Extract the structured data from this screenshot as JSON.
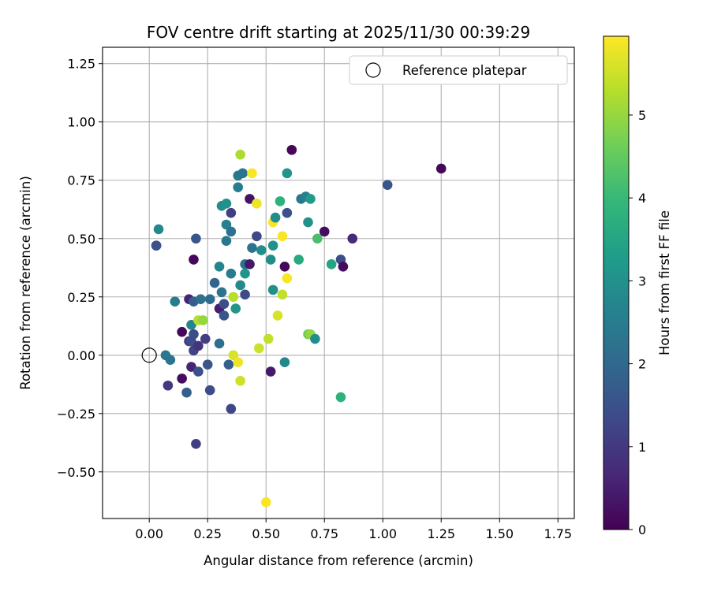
{
  "chart_data": {
    "type": "scatter",
    "title": "FOV centre drift starting at 2025/11/30 00:39:29",
    "xlabel": "Angular distance from reference (arcmin)",
    "ylabel": "Rotation from reference (arcmin)",
    "xlim": [
      -0.2,
      1.82
    ],
    "ylim": [
      -0.7,
      1.32
    ],
    "xticks": [
      0.0,
      0.25,
      0.5,
      0.75,
      1.0,
      1.25,
      1.5,
      1.75
    ],
    "xtick_labels": [
      "0.00",
      "0.25",
      "0.50",
      "0.75",
      "1.00",
      "1.25",
      "1.50",
      "1.75"
    ],
    "yticks": [
      -0.5,
      -0.25,
      0.0,
      0.25,
      0.5,
      0.75,
      1.0,
      1.25
    ],
    "ytick_labels": [
      "−0.50",
      "−0.25",
      "0.00",
      "0.25",
      "0.50",
      "0.75",
      "1.00",
      "1.25"
    ],
    "grid": true,
    "legend": {
      "position": "top-right",
      "entries": [
        "Reference platepar"
      ]
    },
    "reference_point": {
      "x": 0.0,
      "y": 0.0,
      "label": "Reference platepar"
    },
    "colorbar": {
      "label": "Hours from first FF file",
      "range": [
        0,
        5.95
      ],
      "ticks": [
        0,
        1,
        2,
        3,
        4,
        5
      ],
      "tick_labels": [
        "0",
        "1",
        "2",
        "3",
        "4",
        "5"
      ],
      "colormap": [
        "#440154",
        "#482878",
        "#3e4989",
        "#31688e",
        "#26828e",
        "#1f9e89",
        "#35b779",
        "#6ece58",
        "#b5de2b",
        "#fde725"
      ]
    },
    "points": [
      {
        "x": 0.03,
        "y": 0.47,
        "hours": 1.2
      },
      {
        "x": 0.03,
        "y": 0.47,
        "hours": 1.5
      },
      {
        "x": 0.04,
        "y": 0.54,
        "hours": 2.8
      },
      {
        "x": 0.07,
        "y": 0.0,
        "hours": 2.4
      },
      {
        "x": 0.09,
        "y": -0.02,
        "hours": 2.3
      },
      {
        "x": 0.08,
        "y": -0.13,
        "hours": 1.0
      },
      {
        "x": 0.11,
        "y": 0.23,
        "hours": 2.5
      },
      {
        "x": 0.14,
        "y": 0.1,
        "hours": 0.1
      },
      {
        "x": 0.14,
        "y": -0.1,
        "hours": 0.2
      },
      {
        "x": 0.16,
        "y": -0.16,
        "hours": 1.8
      },
      {
        "x": 0.17,
        "y": 0.06,
        "hours": 1.0
      },
      {
        "x": 0.17,
        "y": 0.24,
        "hours": 0.6
      },
      {
        "x": 0.18,
        "y": -0.05,
        "hours": 0.6
      },
      {
        "x": 0.18,
        "y": 0.06,
        "hours": 1.4
      },
      {
        "x": 0.18,
        "y": 0.13,
        "hours": 2.7
      },
      {
        "x": 0.19,
        "y": 0.02,
        "hours": 1.2
      },
      {
        "x": 0.19,
        "y": 0.09,
        "hours": 1.4
      },
      {
        "x": 0.19,
        "y": 0.23,
        "hours": 1.8
      },
      {
        "x": 0.19,
        "y": 0.41,
        "hours": 0.1
      },
      {
        "x": 0.2,
        "y": 0.5,
        "hours": 1.6
      },
      {
        "x": 0.2,
        "y": -0.38,
        "hours": 1.1
      },
      {
        "x": 0.21,
        "y": -0.07,
        "hours": 1.5
      },
      {
        "x": 0.21,
        "y": 0.04,
        "hours": 0.9
      },
      {
        "x": 0.21,
        "y": 0.15,
        "hours": 5.3
      },
      {
        "x": 0.22,
        "y": 0.24,
        "hours": 2.2
      },
      {
        "x": 0.23,
        "y": 0.15,
        "hours": 5.0
      },
      {
        "x": 0.24,
        "y": 0.07,
        "hours": 1.1
      },
      {
        "x": 0.25,
        "y": -0.04,
        "hours": 1.6
      },
      {
        "x": 0.26,
        "y": -0.15,
        "hours": 1.4
      },
      {
        "x": 0.26,
        "y": 0.24,
        "hours": 2.1
      },
      {
        "x": 0.28,
        "y": 0.31,
        "hours": 1.9
      },
      {
        "x": 0.3,
        "y": 0.05,
        "hours": 2.2
      },
      {
        "x": 0.3,
        "y": 0.2,
        "hours": 0.5
      },
      {
        "x": 0.3,
        "y": 0.38,
        "hours": 2.7
      },
      {
        "x": 0.31,
        "y": 0.64,
        "hours": 2.9
      },
      {
        "x": 0.31,
        "y": 0.27,
        "hours": 2.3
      },
      {
        "x": 0.32,
        "y": 0.22,
        "hours": 1.4
      },
      {
        "x": 0.32,
        "y": 0.17,
        "hours": 1.6
      },
      {
        "x": 0.33,
        "y": 0.65,
        "hours": 3.0
      },
      {
        "x": 0.33,
        "y": 0.56,
        "hours": 2.6
      },
      {
        "x": 0.33,
        "y": 0.49,
        "hours": 2.4
      },
      {
        "x": 0.34,
        "y": -0.04,
        "hours": 1.8
      },
      {
        "x": 0.35,
        "y": -0.23,
        "hours": 1.3
      },
      {
        "x": 0.35,
        "y": 0.53,
        "hours": 2.2
      },
      {
        "x": 0.35,
        "y": 0.35,
        "hours": 2.5
      },
      {
        "x": 0.35,
        "y": 0.61,
        "hours": 1.1
      },
      {
        "x": 0.36,
        "y": 0.25,
        "hours": 5.3
      },
      {
        "x": 0.36,
        "y": 0.0,
        "hours": 5.6
      },
      {
        "x": 0.37,
        "y": 0.2,
        "hours": 3.1
      },
      {
        "x": 0.38,
        "y": 0.72,
        "hours": 2.5
      },
      {
        "x": 0.38,
        "y": 0.77,
        "hours": 2.4
      },
      {
        "x": 0.38,
        "y": -0.03,
        "hours": 5.8
      },
      {
        "x": 0.39,
        "y": 0.86,
        "hours": 5.2
      },
      {
        "x": 0.39,
        "y": -0.11,
        "hours": 5.5
      },
      {
        "x": 0.39,
        "y": 0.3,
        "hours": 2.8
      },
      {
        "x": 0.4,
        "y": 0.78,
        "hours": 2.3
      },
      {
        "x": 0.41,
        "y": 0.26,
        "hours": 1.4
      },
      {
        "x": 0.41,
        "y": 0.35,
        "hours": 3.1
      },
      {
        "x": 0.41,
        "y": 0.39,
        "hours": 2.3
      },
      {
        "x": 0.43,
        "y": 0.39,
        "hours": 0.4
      },
      {
        "x": 0.43,
        "y": 0.67,
        "hours": 0.3
      },
      {
        "x": 0.44,
        "y": 0.78,
        "hours": 5.9
      },
      {
        "x": 0.44,
        "y": 0.46,
        "hours": 2.3
      },
      {
        "x": 0.46,
        "y": 0.65,
        "hours": 5.8
      },
      {
        "x": 0.46,
        "y": 0.51,
        "hours": 1.3
      },
      {
        "x": 0.47,
        "y": 0.03,
        "hours": 5.5
      },
      {
        "x": 0.48,
        "y": 0.45,
        "hours": 2.9
      },
      {
        "x": 0.5,
        "y": -0.63,
        "hours": 5.9
      },
      {
        "x": 0.51,
        "y": 0.07,
        "hours": 5.4
      },
      {
        "x": 0.52,
        "y": 0.41,
        "hours": 2.9
      },
      {
        "x": 0.52,
        "y": -0.07,
        "hours": 0.4
      },
      {
        "x": 0.53,
        "y": 0.28,
        "hours": 3.0
      },
      {
        "x": 0.53,
        "y": 0.47,
        "hours": 3.0
      },
      {
        "x": 0.53,
        "y": 0.57,
        "hours": 5.9
      },
      {
        "x": 0.54,
        "y": 0.59,
        "hours": 2.9
      },
      {
        "x": 0.55,
        "y": 0.17,
        "hours": 5.6
      },
      {
        "x": 0.56,
        "y": 0.66,
        "hours": 3.8
      },
      {
        "x": 0.57,
        "y": 0.51,
        "hours": 5.9
      },
      {
        "x": 0.57,
        "y": 0.26,
        "hours": 5.4
      },
      {
        "x": 0.58,
        "y": 0.38,
        "hours": 0.1
      },
      {
        "x": 0.58,
        "y": -0.03,
        "hours": 2.8
      },
      {
        "x": 0.59,
        "y": 0.33,
        "hours": 5.9
      },
      {
        "x": 0.59,
        "y": 0.61,
        "hours": 1.5
      },
      {
        "x": 0.59,
        "y": 0.78,
        "hours": 3.1
      },
      {
        "x": 0.61,
        "y": 0.88,
        "hours": 0.1
      },
      {
        "x": 0.64,
        "y": 0.41,
        "hours": 3.6
      },
      {
        "x": 0.65,
        "y": 0.67,
        "hours": 2.4
      },
      {
        "x": 0.67,
        "y": 0.68,
        "hours": 2.6
      },
      {
        "x": 0.68,
        "y": 0.09,
        "hours": 4.6
      },
      {
        "x": 0.68,
        "y": 0.57,
        "hours": 3.0
      },
      {
        "x": 0.69,
        "y": 0.67,
        "hours": 3.2
      },
      {
        "x": 0.69,
        "y": 0.09,
        "hours": 5.0
      },
      {
        "x": 0.71,
        "y": 0.07,
        "hours": 2.9
      },
      {
        "x": 0.72,
        "y": 0.5,
        "hours": 4.2
      },
      {
        "x": 0.75,
        "y": 0.53,
        "hours": 0.2
      },
      {
        "x": 0.78,
        "y": 0.39,
        "hours": 3.5
      },
      {
        "x": 0.82,
        "y": -0.18,
        "hours": 3.8
      },
      {
        "x": 0.82,
        "y": 0.41,
        "hours": 1.4
      },
      {
        "x": 0.83,
        "y": 0.38,
        "hours": 0.2
      },
      {
        "x": 0.87,
        "y": 0.5,
        "hours": 0.7
      },
      {
        "x": 1.02,
        "y": 0.73,
        "hours": 1.6
      },
      {
        "x": 1.25,
        "y": 0.8,
        "hours": 0.1
      }
    ]
  }
}
